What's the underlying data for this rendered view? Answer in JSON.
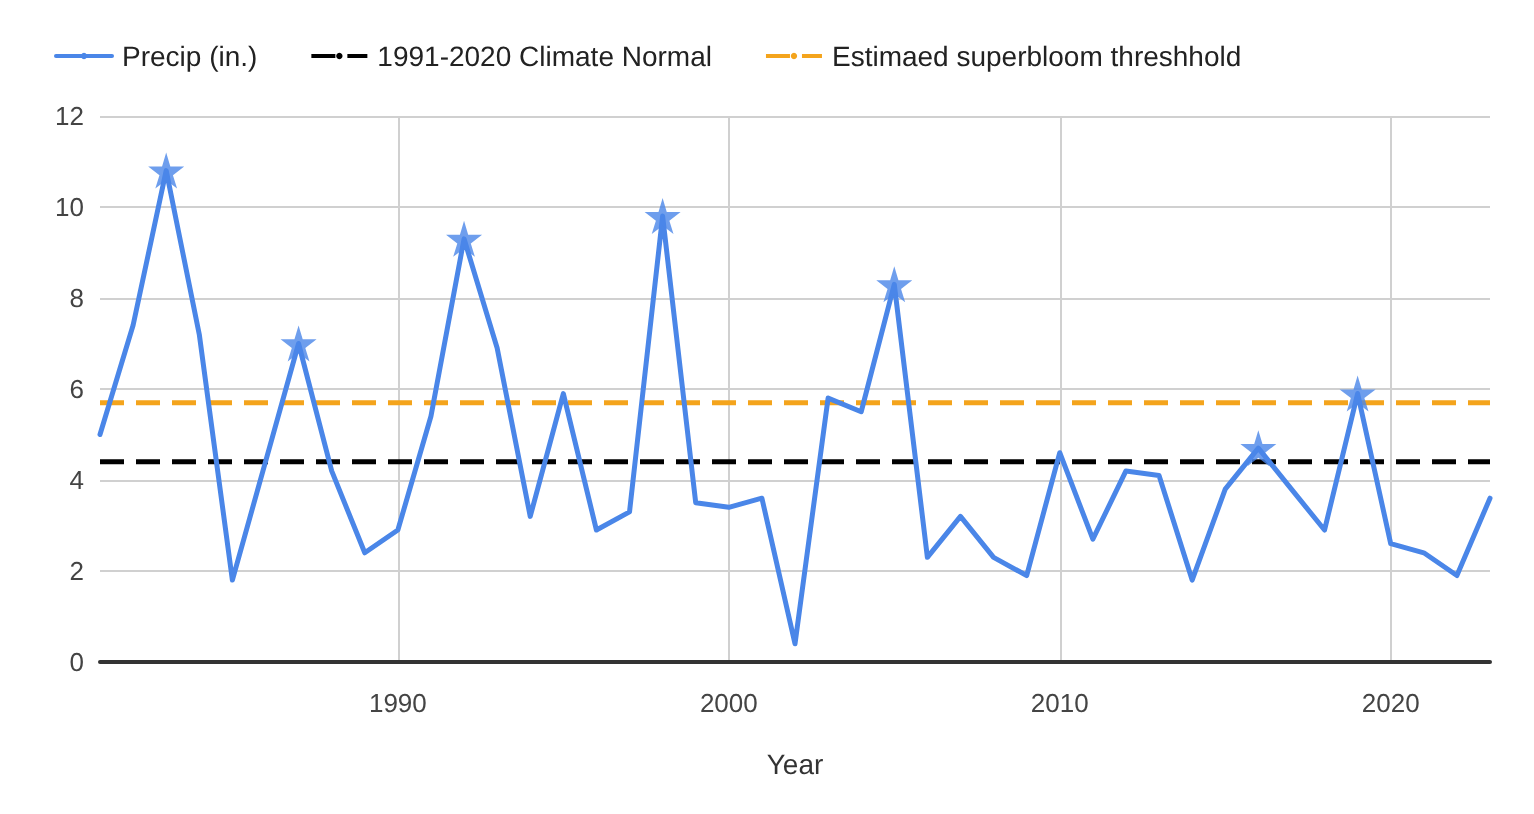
{
  "chart_data": {
    "type": "line",
    "xlabel": "Year",
    "xlim": [
      1981,
      2023
    ],
    "xticks": [
      1990,
      2000,
      2010,
      2020
    ],
    "ylim": [
      0,
      12
    ],
    "yticks": [
      0,
      2,
      4,
      6,
      8,
      10,
      12
    ],
    "grid": true,
    "legend": "top left",
    "marker": "none",
    "line_style": "solid",
    "x": [
      1981,
      1982,
      1983,
      1984,
      1985,
      1986,
      1987,
      1988,
      1989,
      1990,
      1991,
      1992,
      1993,
      1994,
      1995,
      1996,
      1997,
      1998,
      1999,
      2000,
      2001,
      2002,
      2003,
      2004,
      2005,
      2006,
      2007,
      2008,
      2009,
      2010,
      2011,
      2012,
      2013,
      2014,
      2015,
      2016,
      2017,
      2018,
      2019,
      2020,
      2021,
      2022,
      2023
    ],
    "series": [
      {
        "name": "Precip (in.)",
        "color": "#4a86e8",
        "values": [
          5.0,
          7.4,
          10.8,
          7.2,
          1.8,
          4.4,
          7.0,
          4.2,
          2.4,
          2.9,
          5.4,
          9.3,
          6.9,
          3.2,
          5.9,
          2.9,
          3.3,
          9.8,
          3.5,
          3.4,
          3.6,
          0.4,
          5.8,
          5.5,
          8.3,
          2.3,
          3.2,
          2.3,
          1.9,
          4.6,
          2.7,
          4.2,
          4.1,
          1.8,
          3.8,
          4.7,
          3.8,
          2.9,
          5.9,
          2.6,
          2.4,
          1.9,
          3.6
        ]
      },
      {
        "type": "scatter",
        "marker": "star",
        "color": "#4a86e8",
        "x": [
          1983,
          1987,
          1992,
          1998,
          2005,
          2016,
          2019
        ],
        "values": [
          10.8,
          7.0,
          9.3,
          9.8,
          8.3,
          4.7,
          5.9
        ]
      }
    ],
    "ref_lines": [
      {
        "axis": "y",
        "value": 4.4,
        "label": "1991-2020 Climate Normal",
        "color": "#000000",
        "line_style": "dashed"
      },
      {
        "axis": "y",
        "value": 5.7,
        "label": "Estimaed superbloom threshhold",
        "color": "#f4a41c",
        "line_style": "dashed"
      }
    ]
  }
}
